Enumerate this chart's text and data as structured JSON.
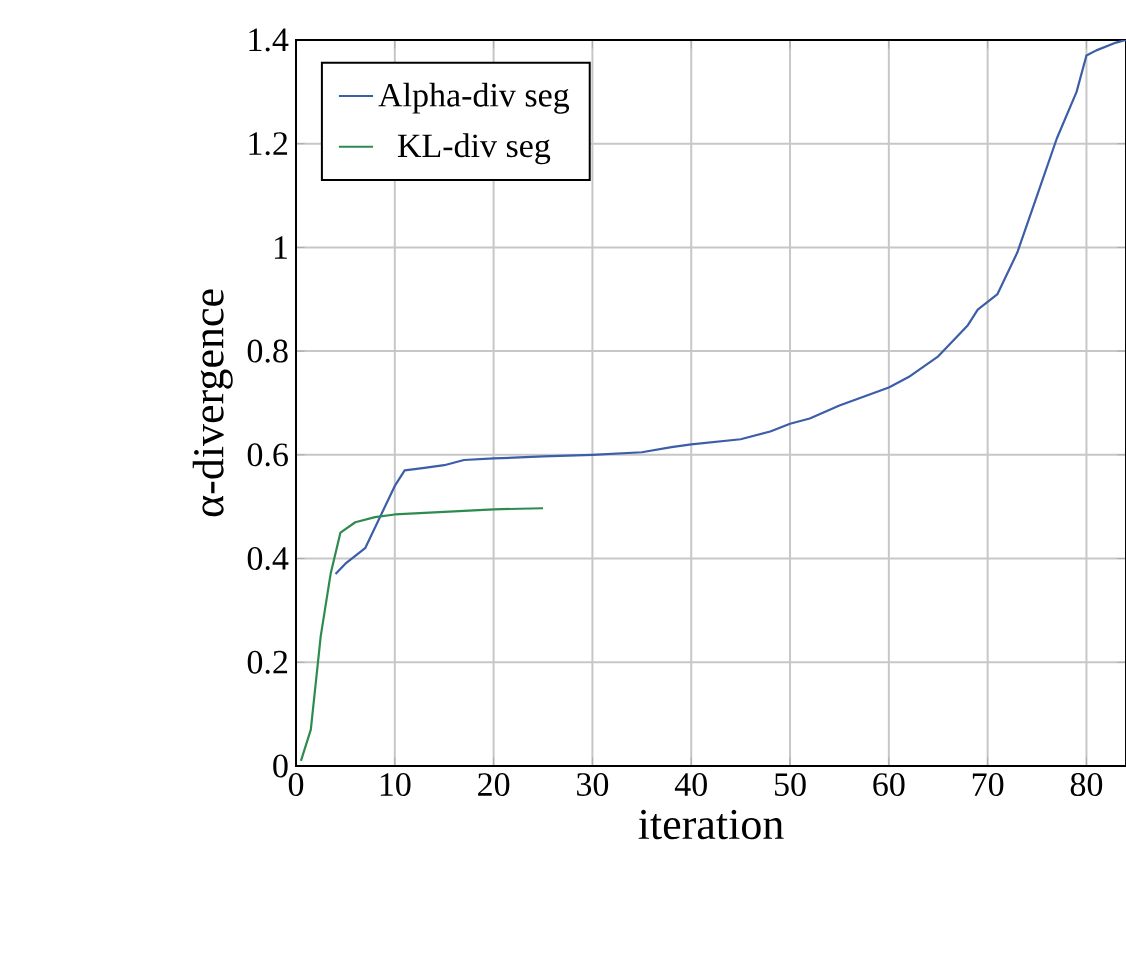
{
  "chart_data": {
    "type": "line",
    "xlabel": "iteration",
    "ylabel": "α-divergence",
    "xlim": [
      0,
      84
    ],
    "ylim": [
      0,
      1.4
    ],
    "xticks": [
      0,
      10,
      20,
      30,
      40,
      50,
      60,
      70,
      80
    ],
    "yticks": [
      0,
      0.2,
      0.4,
      0.6,
      0.8,
      1,
      1.2,
      1.4
    ],
    "grid": true,
    "legend": "top left",
    "marker": "none",
    "line_style": "solid",
    "series": [
      {
        "name": "Alpha-div seg",
        "color": "#3c5da8",
        "x": [
          4,
          5,
          7,
          9,
          10,
          11,
          13,
          15,
          17,
          20,
          25,
          30,
          35,
          38,
          40,
          45,
          48,
          50,
          52,
          55,
          60,
          62,
          65,
          68,
          69,
          71,
          73,
          75,
          77,
          79,
          80,
          81,
          83,
          84
        ],
        "values": [
          0.37,
          0.39,
          0.42,
          0.5,
          0.54,
          0.57,
          0.575,
          0.58,
          0.59,
          0.593,
          0.597,
          0.6,
          0.605,
          0.615,
          0.62,
          0.63,
          0.645,
          0.66,
          0.67,
          0.695,
          0.73,
          0.75,
          0.79,
          0.85,
          0.88,
          0.91,
          0.99,
          1.1,
          1.21,
          1.3,
          1.37,
          1.38,
          1.395,
          1.4
        ]
      },
      {
        "name": "KL-div seg",
        "color": "#2e8b4f",
        "x": [
          0.5,
          1.5,
          2.5,
          3.5,
          4.5,
          6,
          8,
          10,
          15,
          20,
          25
        ],
        "values": [
          0.01,
          0.07,
          0.25,
          0.37,
          0.45,
          0.47,
          0.48,
          0.485,
          0.49,
          0.495,
          0.497
        ]
      }
    ]
  }
}
